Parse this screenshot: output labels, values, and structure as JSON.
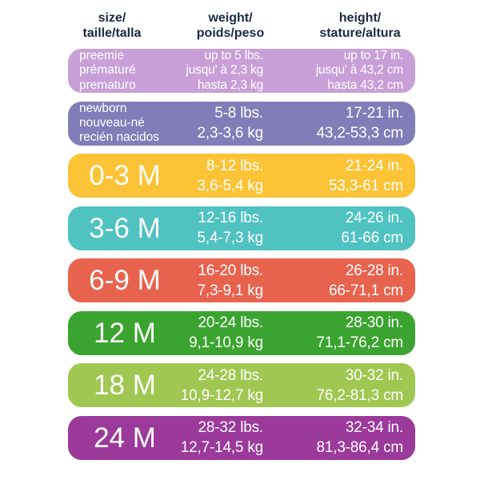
{
  "chart_data": {
    "type": "table",
    "title": "baby size chart (size / weight / height)",
    "background": "#ffffff",
    "header_text_color": "#1b2944",
    "row_text_color": "#ffffff",
    "columns": [
      {
        "id": "size",
        "label_lines": [
          "size/",
          "taille/talla"
        ]
      },
      {
        "id": "weight",
        "label_lines": [
          "weight/",
          "poids/peso"
        ]
      },
      {
        "id": "height",
        "label_lines": [
          "height/",
          "stature/altura"
        ]
      }
    ],
    "rows": [
      {
        "size_lines": [
          "preemie",
          "prématuré",
          "prematuro"
        ],
        "weight_lines": [
          "up to 5 lbs.",
          "jusqu' à 2,3 kg",
          "hasta 2,3 kg"
        ],
        "height_lines": [
          "up to 17 in.",
          "jusqu' à 43,2 cm",
          "hasta 43,2 cm"
        ],
        "color": "#c99fd8",
        "size_style": "small",
        "values_small": true
      },
      {
        "size_lines": [
          "newborn",
          "nouveau-né",
          "recién nacidos"
        ],
        "weight_lines": [
          "5-8 lbs.",
          "2,3-3,6 kg"
        ],
        "height_lines": [
          "17-21 in.",
          "43,2-53,3 cm"
        ],
        "color": "#817db9",
        "size_style": "small",
        "values_small": false
      },
      {
        "size_lines": [
          "0-3 M"
        ],
        "weight_lines": [
          "8-12 lbs.",
          "3,6-5,4 kg"
        ],
        "height_lines": [
          "21-24 in.",
          "53,3-61 cm"
        ],
        "color": "#fbc335",
        "size_style": "big",
        "values_small": false
      },
      {
        "size_lines": [
          "3-6 M"
        ],
        "weight_lines": [
          "12-16 lbs.",
          "5,4-7,3 kg"
        ],
        "height_lines": [
          "24-26 in.",
          "61-66 cm"
        ],
        "color": "#4fc2c1",
        "size_style": "big",
        "values_small": false
      },
      {
        "size_lines": [
          "6-9 M"
        ],
        "weight_lines": [
          "16-20 lbs.",
          "7,3-9,1 kg"
        ],
        "height_lines": [
          "26-28 in.",
          "66-71,1 cm"
        ],
        "color": "#e8634e",
        "size_style": "big",
        "values_small": false
      },
      {
        "size_lines": [
          "12 M"
        ],
        "weight_lines": [
          "20-24 lbs.",
          "9,1-10,9 kg"
        ],
        "height_lines": [
          "28-30 in.",
          "71,1-76,2 cm"
        ],
        "color": "#3ba430",
        "size_style": "big",
        "values_small": false
      },
      {
        "size_lines": [
          "18 M"
        ],
        "weight_lines": [
          "24-28 lbs.",
          "10,9-12,7 kg"
        ],
        "height_lines": [
          "30-32 in.",
          "76,2-81,3 cm"
        ],
        "color": "#a0c751",
        "size_style": "big",
        "values_small": false
      },
      {
        "size_lines": [
          "24 M"
        ],
        "weight_lines": [
          "28-32 lbs.",
          "12,7-14,5 kg"
        ],
        "height_lines": [
          "32-34 in.",
          "81,3-86,4 cm"
        ],
        "color": "#9b3a9b",
        "size_style": "big",
        "values_small": false
      }
    ]
  }
}
